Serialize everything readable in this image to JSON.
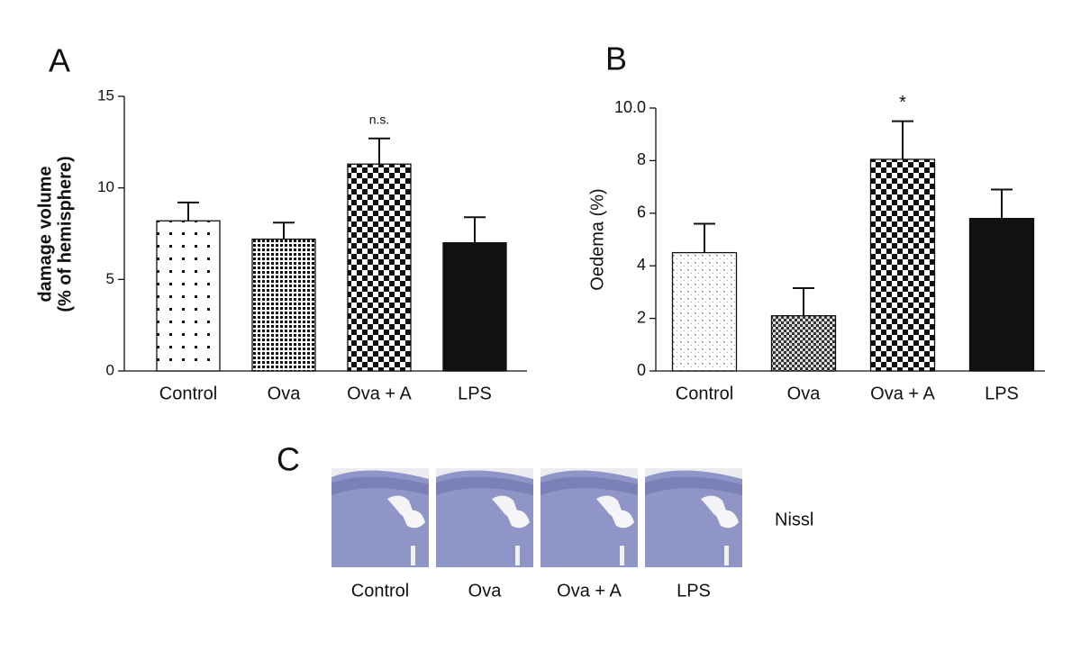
{
  "chart_data": [
    {
      "type": "bar",
      "panel": "A",
      "ylabel": [
        "damage volume",
        "(% of hemisphere)"
      ],
      "categories": [
        "Control",
        "Ova",
        "Ova + A",
        "LPS"
      ],
      "values": [
        8.2,
        7.2,
        11.3,
        7.0
      ],
      "errors": [
        1.0,
        0.9,
        1.4,
        1.4
      ],
      "annotations": [
        null,
        null,
        "n.s.",
        null
      ],
      "patterns": [
        "sparse-dots",
        "dense-dots",
        "checker",
        "solid"
      ],
      "ylim": [
        0,
        15
      ],
      "yticks": [
        0,
        5,
        10,
        15
      ]
    },
    {
      "type": "bar",
      "panel": "B",
      "ylabel": [
        "Oedema (%)"
      ],
      "categories": [
        "Control",
        "Ova",
        "Ova + A",
        "LPS"
      ],
      "values": [
        4.5,
        2.1,
        8.05,
        5.8
      ],
      "errors": [
        1.1,
        1.05,
        1.45,
        1.1
      ],
      "annotations": [
        null,
        null,
        "*",
        null
      ],
      "patterns": [
        "fine-dots",
        "fine-checker",
        "checker",
        "solid"
      ],
      "ylim": [
        0,
        10
      ],
      "yticks": [
        0,
        2,
        4,
        6,
        8,
        {
          "value": 10,
          "label": "10.0"
        }
      ]
    }
  ],
  "panel_c": {
    "panel": "C",
    "images": [
      "Control",
      "Ova",
      "Ova + A",
      "LPS"
    ],
    "stain": "Nissl"
  }
}
